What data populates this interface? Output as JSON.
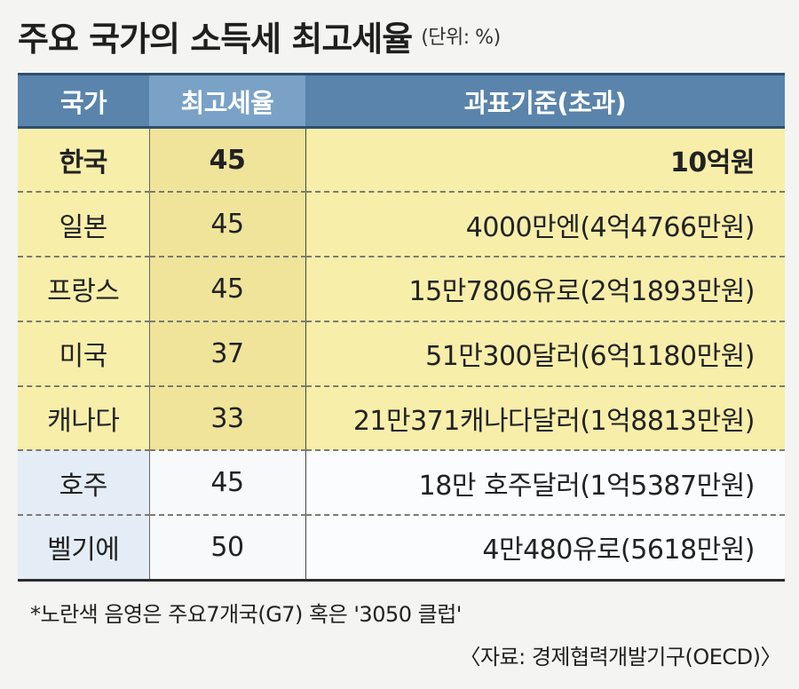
{
  "title": "주요 국가의 소득세 최고세율",
  "unit": "(단위: %)",
  "table": {
    "headers": [
      "국가",
      "최고세율",
      "과표기준(초과)"
    ],
    "rows": [
      {
        "country": "한국",
        "rate": "45",
        "base": "10억원",
        "group": "yellow",
        "highlight": true
      },
      {
        "country": "일본",
        "rate": "45",
        "base": "4000만엔(4억4766만원)",
        "group": "yellow",
        "highlight": false
      },
      {
        "country": "프랑스",
        "rate": "45",
        "base": "15만7806유로(2억1893만원)",
        "group": "yellow",
        "highlight": false
      },
      {
        "country": "미국",
        "rate": "37",
        "base": "51만300달러(6억1180만원)",
        "group": "yellow",
        "highlight": false
      },
      {
        "country": "캐나다",
        "rate": "33",
        "base": "21만371캐나다달러(1억8813만원)",
        "group": "yellow",
        "highlight": false
      },
      {
        "country": "호주",
        "rate": "45",
        "base": "18만 호주달러(1억5387만원)",
        "group": "blue",
        "highlight": false
      },
      {
        "country": "벨기에",
        "rate": "50",
        "base": "4만480유로(5618만원)",
        "group": "blue",
        "highlight": false
      }
    ]
  },
  "note": "*노란색 음영은 주요7개국(G7) 혹은 '3050 클럽'",
  "source": "〈자료: 경제협력개발기구(OECD)〉",
  "colors": {
    "header_blue": "#5a84ab",
    "yellow_row": "#f7eeaa",
    "blue_row": "#e4edf6"
  }
}
